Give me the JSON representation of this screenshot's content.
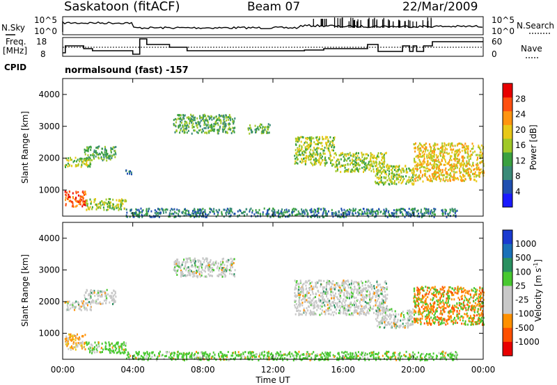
{
  "header": {
    "station": "Saskatoon (fitACF)",
    "beam": "Beam 07",
    "date": "22/Mar/2009"
  },
  "status_panels": {
    "left_labels": {
      "nsky": "N.Sky",
      "freq_line1": "Freq.",
      "freq_line2": "[MHz]",
      "cpid": "CPID"
    },
    "right_labels": {
      "nsearch": "N.Search",
      "nave": "Nave"
    },
    "nsky_ticks": [
      "10^5",
      "10^0"
    ],
    "freq_ticks": [
      "18",
      "8"
    ],
    "nave_ticks": [
      "60",
      "0"
    ],
    "cpid_text": "normalsound (fast) -157"
  },
  "chart_data": [
    {
      "type": "heatmap",
      "name": "power",
      "ylabel": "Slant Range [km]",
      "y_ticks": [
        "1000",
        "2000",
        "3000",
        "4000"
      ],
      "ylim": [
        180,
        4500
      ],
      "colorbar": {
        "label": "Power [dB]",
        "ticks": [
          "4",
          "8",
          "12",
          "16",
          "20",
          "24",
          "28"
        ],
        "range": [
          0,
          32
        ],
        "colors": [
          "#1a1aff",
          "#2050b0",
          "#3a8a78",
          "#3aa040",
          "#a0c828",
          "#e8c818",
          "#ff9410",
          "#ff5010",
          "#e80000"
        ]
      },
      "echo_regions": [
        {
          "t": [
            0.1,
            1.6
          ],
          "r": [
            1750,
            2050
          ],
          "p": 16
        },
        {
          "t": [
            1.2,
            3.0
          ],
          "r": [
            1950,
            2400
          ],
          "p": 12
        },
        {
          "t": [
            0.1,
            1.3
          ],
          "r": [
            500,
            1000
          ],
          "p": 28
        },
        {
          "t": [
            1.3,
            3.6
          ],
          "r": [
            400,
            750
          ],
          "p": 14
        },
        {
          "t": [
            3.5,
            3.9
          ],
          "r": [
            1500,
            1650
          ],
          "p": 8
        },
        {
          "t": [
            6.3,
            9.8
          ],
          "r": [
            2800,
            3400
          ],
          "p": 10
        },
        {
          "t": [
            10.5,
            11.8
          ],
          "r": [
            2800,
            3100
          ],
          "p": 10
        },
        {
          "t": [
            13.2,
            15.5
          ],
          "r": [
            1800,
            2700
          ],
          "p": 14
        },
        {
          "t": [
            15.5,
            18.5
          ],
          "r": [
            1600,
            2200
          ],
          "p": 14
        },
        {
          "t": [
            17.8,
            20.0
          ],
          "r": [
            1200,
            1800
          ],
          "p": 16
        },
        {
          "t": [
            20.0,
            24.0
          ],
          "r": [
            1300,
            2500
          ],
          "p": 18
        },
        {
          "t": [
            3.6,
            22.5
          ],
          "r": [
            180,
            450
          ],
          "p": 8
        }
      ]
    },
    {
      "type": "heatmap",
      "name": "velocity",
      "ylabel": "Slant Range [km]",
      "y_ticks": [
        "1000",
        "2000",
        "3000",
        "4000"
      ],
      "ylim": [
        180,
        4500
      ],
      "colorbar": {
        "label": "Velocity [m s^-1]",
        "ticks": [
          "1000",
          "500",
          "100",
          "25",
          "-25",
          "-100",
          "-500",
          "-1000"
        ],
        "colors": [
          "#1a3ad0",
          "#1a70b8",
          "#2a9060",
          "#48c830",
          "#c8c8c8",
          "#c8c8c8",
          "#ff9000",
          "#ff5000",
          "#e80000"
        ]
      },
      "echo_regions": [
        {
          "t": [
            0.1,
            1.6
          ],
          "r": [
            1750,
            2050
          ],
          "v": 0
        },
        {
          "t": [
            1.2,
            3.0
          ],
          "r": [
            1950,
            2400
          ],
          "v": 0
        },
        {
          "t": [
            0.1,
            1.3
          ],
          "r": [
            500,
            1000
          ],
          "v": -100
        },
        {
          "t": [
            1.3,
            3.6
          ],
          "r": [
            400,
            750
          ],
          "v": 150
        },
        {
          "t": [
            6.3,
            9.8
          ],
          "r": [
            2800,
            3400
          ],
          "v": 0
        },
        {
          "t": [
            13.2,
            18.5
          ],
          "r": [
            1600,
            2700
          ],
          "v": 0
        },
        {
          "t": [
            17.8,
            20.0
          ],
          "r": [
            1200,
            1800
          ],
          "v": 0
        },
        {
          "t": [
            20.0,
            24.0
          ],
          "r": [
            1300,
            2500
          ],
          "v": -200
        },
        {
          "t": [
            3.6,
            22.5
          ],
          "r": [
            180,
            450
          ],
          "v": 120
        }
      ]
    }
  ],
  "x_axis": {
    "label": "Time UT",
    "ticks": [
      "00:00",
      "04:00",
      "08:00",
      "12:00",
      "16:00",
      "20:00",
      "00:00"
    ],
    "range_hours": [
      0,
      24
    ]
  }
}
